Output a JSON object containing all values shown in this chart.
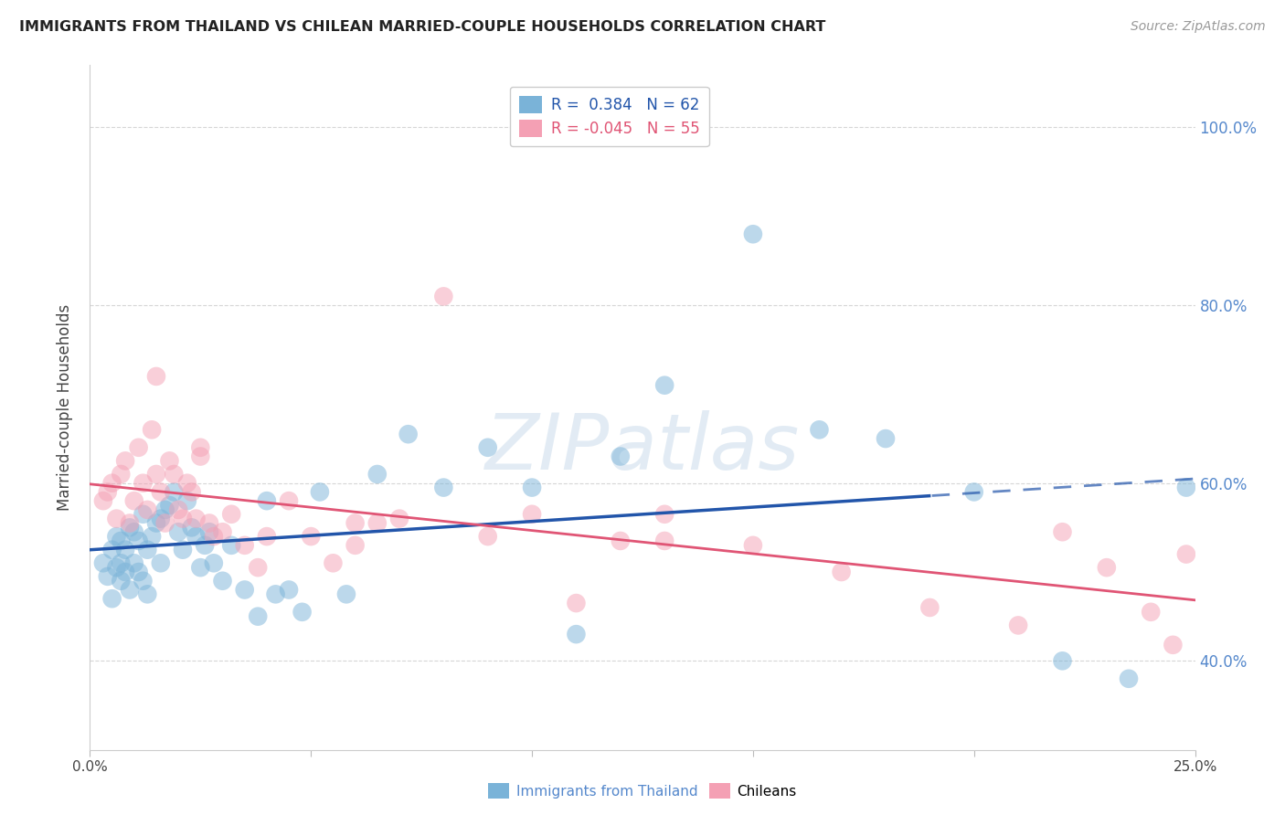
{
  "title": "IMMIGRANTS FROM THAILAND VS CHILEAN MARRIED-COUPLE HOUSEHOLDS CORRELATION CHART",
  "source": "Source: ZipAtlas.com",
  "ylabel": "Married-couple Households",
  "xlabel_blue": "Immigrants from Thailand",
  "xlabel_pink": "Chileans",
  "xlim": [
    0.0,
    0.25
  ],
  "ylim": [
    0.3,
    1.07
  ],
  "xticks": [
    0.0,
    0.05,
    0.1,
    0.15,
    0.2,
    0.25
  ],
  "xtick_labels": [
    "0.0%",
    "",
    "",
    "",
    "",
    "25.0%"
  ],
  "yticks_right": [
    0.4,
    0.6,
    0.8,
    1.0
  ],
  "ytick_labels_right": [
    "40.0%",
    "60.0%",
    "80.0%",
    "100.0%"
  ],
  "R_blue": 0.384,
  "N_blue": 62,
  "R_pink": -0.045,
  "N_pink": 55,
  "blue_color": "#7ab3d8",
  "pink_color": "#f4a0b4",
  "trend_blue_color": "#2255aa",
  "trend_pink_color": "#e05575",
  "watermark": "ZIPatlas",
  "background_color": "#ffffff",
  "grid_color": "#cccccc",
  "blue_scatter_x": [
    0.003,
    0.004,
    0.005,
    0.005,
    0.006,
    0.006,
    0.007,
    0.007,
    0.007,
    0.008,
    0.008,
    0.009,
    0.009,
    0.01,
    0.01,
    0.011,
    0.011,
    0.012,
    0.012,
    0.013,
    0.013,
    0.014,
    0.015,
    0.016,
    0.016,
    0.017,
    0.018,
    0.019,
    0.02,
    0.021,
    0.022,
    0.023,
    0.024,
    0.025,
    0.026,
    0.027,
    0.028,
    0.03,
    0.032,
    0.035,
    0.038,
    0.04,
    0.042,
    0.045,
    0.048,
    0.052,
    0.058,
    0.065,
    0.072,
    0.08,
    0.09,
    0.1,
    0.11,
    0.12,
    0.13,
    0.15,
    0.165,
    0.18,
    0.2,
    0.22,
    0.235,
    0.248
  ],
  "blue_scatter_y": [
    0.51,
    0.495,
    0.525,
    0.47,
    0.54,
    0.505,
    0.535,
    0.49,
    0.51,
    0.525,
    0.5,
    0.55,
    0.48,
    0.51,
    0.545,
    0.5,
    0.535,
    0.49,
    0.565,
    0.525,
    0.475,
    0.54,
    0.555,
    0.51,
    0.56,
    0.57,
    0.575,
    0.59,
    0.545,
    0.525,
    0.58,
    0.55,
    0.54,
    0.505,
    0.53,
    0.545,
    0.51,
    0.49,
    0.53,
    0.48,
    0.45,
    0.58,
    0.475,
    0.48,
    0.455,
    0.59,
    0.475,
    0.61,
    0.655,
    0.595,
    0.64,
    0.595,
    0.43,
    0.63,
    0.71,
    0.88,
    0.66,
    0.65,
    0.59,
    0.4,
    0.38,
    0.595
  ],
  "pink_scatter_x": [
    0.003,
    0.004,
    0.005,
    0.006,
    0.007,
    0.008,
    0.009,
    0.01,
    0.011,
    0.012,
    0.013,
    0.014,
    0.015,
    0.016,
    0.017,
    0.018,
    0.019,
    0.02,
    0.021,
    0.022,
    0.023,
    0.024,
    0.025,
    0.027,
    0.028,
    0.03,
    0.032,
    0.035,
    0.038,
    0.04,
    0.045,
    0.05,
    0.055,
    0.06,
    0.065,
    0.07,
    0.08,
    0.09,
    0.1,
    0.11,
    0.12,
    0.13,
    0.15,
    0.17,
    0.19,
    0.21,
    0.22,
    0.23,
    0.24,
    0.245,
    0.248,
    0.13,
    0.06,
    0.025,
    0.015
  ],
  "pink_scatter_y": [
    0.58,
    0.59,
    0.6,
    0.56,
    0.61,
    0.625,
    0.555,
    0.58,
    0.64,
    0.6,
    0.57,
    0.66,
    0.61,
    0.59,
    0.555,
    0.625,
    0.61,
    0.57,
    0.56,
    0.6,
    0.59,
    0.56,
    0.64,
    0.555,
    0.54,
    0.545,
    0.565,
    0.53,
    0.505,
    0.54,
    0.58,
    0.54,
    0.51,
    0.555,
    0.555,
    0.56,
    0.81,
    0.54,
    0.565,
    0.465,
    0.535,
    0.565,
    0.53,
    0.5,
    0.46,
    0.44,
    0.545,
    0.505,
    0.455,
    0.418,
    0.52,
    0.535,
    0.53,
    0.63,
    0.72
  ]
}
